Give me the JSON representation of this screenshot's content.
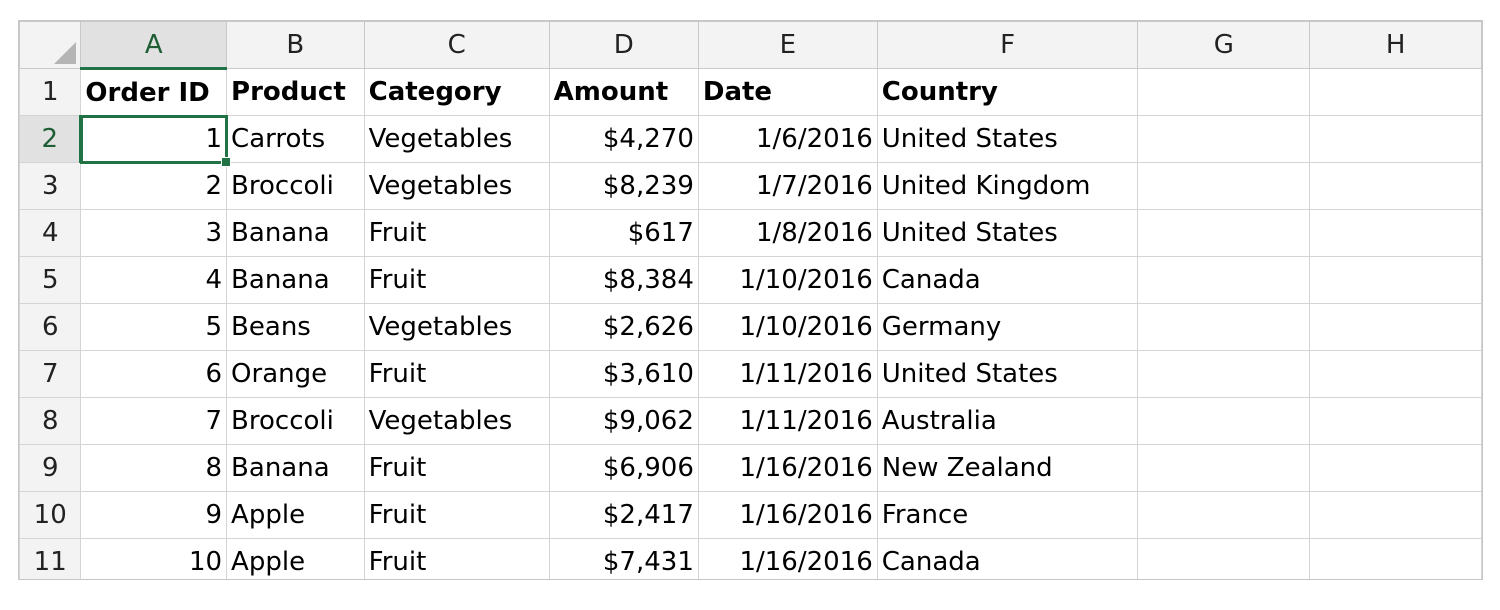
{
  "columns": [
    "A",
    "B",
    "C",
    "D",
    "E",
    "F",
    "G",
    "H"
  ],
  "header_row": {
    "row_label": "1",
    "cells": [
      "Order ID",
      "Product",
      "Category",
      "Amount",
      "Date",
      "Country",
      "",
      ""
    ]
  },
  "rows": [
    {
      "row_label": "2",
      "cells": [
        "1",
        "Carrots",
        "Vegetables",
        "$4,270",
        "1/6/2016",
        "United States",
        "",
        ""
      ]
    },
    {
      "row_label": "3",
      "cells": [
        "2",
        "Broccoli",
        "Vegetables",
        "$8,239",
        "1/7/2016",
        "United Kingdom",
        "",
        ""
      ]
    },
    {
      "row_label": "4",
      "cells": [
        "3",
        "Banana",
        "Fruit",
        "$617",
        "1/8/2016",
        "United States",
        "",
        ""
      ]
    },
    {
      "row_label": "5",
      "cells": [
        "4",
        "Banana",
        "Fruit",
        "$8,384",
        "1/10/2016",
        "Canada",
        "",
        ""
      ]
    },
    {
      "row_label": "6",
      "cells": [
        "5",
        "Beans",
        "Vegetables",
        "$2,626",
        "1/10/2016",
        "Germany",
        "",
        ""
      ]
    },
    {
      "row_label": "7",
      "cells": [
        "6",
        "Orange",
        "Fruit",
        "$3,610",
        "1/11/2016",
        "United States",
        "",
        ""
      ]
    },
    {
      "row_label": "8",
      "cells": [
        "7",
        "Broccoli",
        "Vegetables",
        "$9,062",
        "1/11/2016",
        "Australia",
        "",
        ""
      ]
    },
    {
      "row_label": "9",
      "cells": [
        "8",
        "Banana",
        "Fruit",
        "$6,906",
        "1/16/2016",
        "New Zealand",
        "",
        ""
      ]
    },
    {
      "row_label": "10",
      "cells": [
        "9",
        "Apple",
        "Fruit",
        "$2,417",
        "1/16/2016",
        "France",
        "",
        ""
      ]
    },
    {
      "row_label": "11",
      "cells": [
        "10",
        "Apple",
        "Fruit",
        "$7,431",
        "1/16/2016",
        "Canada",
        "",
        ""
      ]
    }
  ],
  "selection": {
    "active_cell": "A2"
  },
  "colors": {
    "selection_accent": "#217346",
    "header_bg": "#f3f3f3",
    "gridline": "#d4d4d4"
  }
}
